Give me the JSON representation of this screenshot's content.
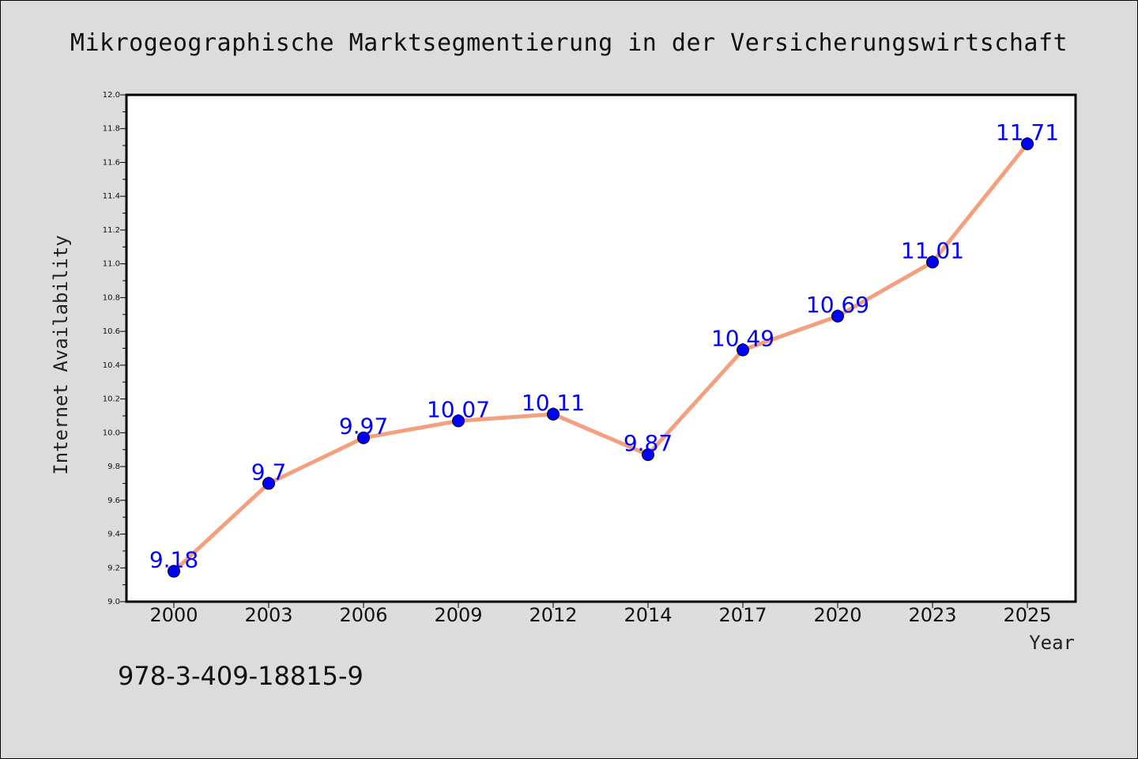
{
  "chart_data": {
    "type": "line",
    "title": "Mikrogeographische Marktsegmentierung in der Versicherungswirtschaft",
    "xlabel": "Year",
    "ylabel": "Internet Availability",
    "categories": [
      "2000",
      "2003",
      "2006",
      "2009",
      "2012",
      "2014",
      "2017",
      "2020",
      "2023",
      "2025"
    ],
    "series": [
      {
        "values": [
          9.18,
          9.7,
          9.97,
          10.07,
          10.11,
          9.87,
          10.49,
          10.69,
          11.01,
          11.71
        ],
        "data_labels": [
          "9.18",
          "9.7",
          "9.97",
          "10.07",
          "10.11",
          "9.87",
          "10.49",
          "10.69",
          "11.01",
          "11.71"
        ],
        "line_color": "#f4a07e",
        "marker_color": "#0000ff"
      }
    ],
    "ylim": [
      9.0,
      12.0
    ],
    "y_ticks": [
      "9.0",
      "9.2",
      "9.4",
      "9.6",
      "9.8",
      "10.0",
      "10.2",
      "10.4",
      "10.6",
      "10.8",
      "11.0",
      "11.2",
      "11.4",
      "11.6",
      "11.8",
      "12.0"
    ],
    "grid": false,
    "legend": "none"
  },
  "footer_text": "978-3-409-18815-9",
  "colors": {
    "background": "#dcdcdc",
    "plot_background": "#ffffff",
    "line": "#f4a07e",
    "marker": "#0000ff",
    "data_label": "#0000ff"
  }
}
